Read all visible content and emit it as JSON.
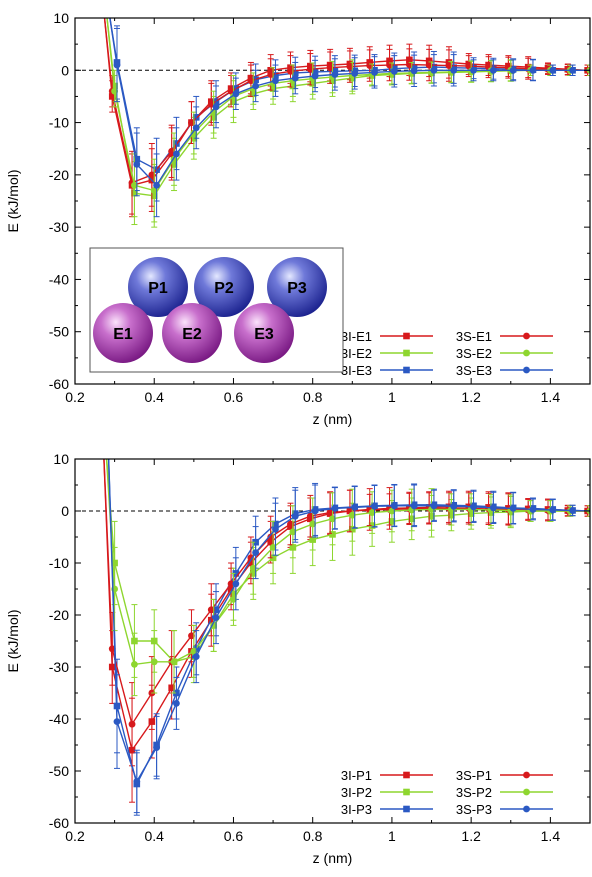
{
  "charts": [
    {
      "type": "line",
      "xlabel": "z (nm)",
      "ylabel": "E (kJ/mol)",
      "xlim": [
        0.2,
        1.5
      ],
      "ylim": [
        -60,
        10
      ],
      "xticks": [
        0.2,
        0.4,
        0.6,
        0.8,
        1,
        1.2,
        1.4
      ],
      "xtick_labels": [
        "0.2",
        "0.4",
        "0.6",
        "0.8",
        "1",
        "1.2",
        "1.4"
      ],
      "yticks": [
        10,
        0,
        -10,
        -20,
        -30,
        -40,
        -50,
        -60
      ],
      "ytick_labels": [
        "10",
        "0",
        "-10",
        "-20",
        "-30",
        "-40",
        "-50",
        "-60"
      ],
      "zero_line": "dashed",
      "legend_position": "bottom-right",
      "has_inset": true,
      "inset_spheres": [
        {
          "label": "P1",
          "kind": "P"
        },
        {
          "label": "P2",
          "kind": "P"
        },
        {
          "label": "P3",
          "kind": "P"
        },
        {
          "label": "E1",
          "kind": "E"
        },
        {
          "label": "E2",
          "kind": "E"
        },
        {
          "label": "E3",
          "kind": "E"
        }
      ],
      "series": [
        {
          "name": "3I-E1",
          "color": "#d7191c",
          "marker": "square",
          "x": [
            0.3,
            0.35,
            0.4,
            0.45,
            0.5,
            0.55,
            0.6,
            0.65,
            0.7,
            0.75,
            0.8,
            0.85,
            0.9,
            0.95,
            1.0,
            1.05,
            1.1,
            1.15,
            1.2,
            1.25,
            1.3,
            1.35,
            1.4,
            1.45,
            1.5
          ],
          "y": [
            -5,
            -22,
            -21,
            -16,
            -10,
            -6,
            -3.5,
            -1.5,
            0,
            0.5,
            0.8,
            1,
            1.2,
            1.5,
            1.8,
            2,
            1.8,
            1.5,
            1.2,
            1,
            0.8,
            0.6,
            0.4,
            0.2,
            0
          ],
          "err": [
            3,
            6,
            6,
            5,
            4,
            4,
            3,
            3,
            3,
            3,
            3,
            3,
            3,
            3,
            3,
            3,
            3,
            3,
            2,
            2,
            2,
            2,
            1,
            1,
            1
          ]
        },
        {
          "name": "3I-E2",
          "color": "#8ed62f",
          "marker": "square",
          "x": [
            0.3,
            0.35,
            0.4,
            0.45,
            0.5,
            0.55,
            0.6,
            0.65,
            0.7,
            0.75,
            0.8,
            0.85,
            0.9,
            0.95,
            1.0,
            1.05,
            1.1,
            1.15,
            1.2,
            1.25,
            1.3,
            1.35,
            1.4,
            1.45,
            1.5
          ],
          "y": [
            -3,
            -23.5,
            -24,
            -18,
            -13,
            -9,
            -6,
            -4.5,
            -3.5,
            -3,
            -2.5,
            -2,
            -1.5,
            -1,
            -0.8,
            -0.6,
            -0.5,
            -0.4,
            -0.3,
            -0.2,
            -0.1,
            0,
            0,
            0,
            0
          ],
          "err": [
            3,
            6,
            6,
            5,
            4,
            4,
            4,
            3,
            3,
            3,
            3,
            3,
            3,
            2,
            2,
            2,
            2,
            2,
            2,
            2,
            2,
            1,
            1,
            1,
            1
          ]
        },
        {
          "name": "3I-E3",
          "color": "#2b59c3",
          "marker": "square",
          "x": [
            0.3,
            0.35,
            0.4,
            0.45,
            0.5,
            0.55,
            0.6,
            0.65,
            0.7,
            0.75,
            0.8,
            0.85,
            0.9,
            0.95,
            1.0,
            1.05,
            1.1,
            1.15,
            1.2,
            1.25,
            1.3,
            1.35,
            1.4,
            1.45,
            1.5
          ],
          "y": [
            1.5,
            -17,
            -19,
            -14,
            -9,
            -6,
            -3.5,
            -1.8,
            -1,
            -0.5,
            -0.3,
            -0.2,
            -0.1,
            0,
            0.3,
            0.5,
            0.6,
            0.5,
            0.4,
            0.3,
            0.2,
            0.1,
            0,
            0,
            0
          ],
          "err": [
            7,
            6,
            6,
            5,
            4,
            4,
            3,
            3,
            3,
            3,
            3,
            3,
            3,
            3,
            3,
            3,
            3,
            3,
            2,
            2,
            2,
            2,
            1,
            1,
            1
          ]
        },
        {
          "name": "3S-E1",
          "color": "#d7191c",
          "marker": "circle",
          "x": [
            0.3,
            0.35,
            0.4,
            0.45,
            0.5,
            0.55,
            0.6,
            0.65,
            0.7,
            0.75,
            0.8,
            0.85,
            0.9,
            0.95,
            1.0,
            1.05,
            1.1,
            1.15,
            1.2,
            1.25,
            1.3,
            1.35,
            1.4,
            1.45,
            1.5
          ],
          "y": [
            -4,
            -21.5,
            -20,
            -15.5,
            -10,
            -6.5,
            -4,
            -2,
            -0.8,
            -0.2,
            0.2,
            0.5,
            0.7,
            0.9,
            1,
            1.1,
            1,
            0.9,
            0.8,
            0.6,
            0.5,
            0.3,
            0.2,
            0.1,
            0
          ],
          "err": [
            3,
            6,
            6,
            5,
            4,
            4,
            3,
            3,
            3,
            3,
            3,
            3,
            3,
            3,
            3,
            3,
            3,
            3,
            2,
            2,
            2,
            2,
            1,
            1,
            1
          ]
        },
        {
          "name": "3S-E2",
          "color": "#8ed62f",
          "marker": "circle",
          "x": [
            0.3,
            0.35,
            0.4,
            0.45,
            0.5,
            0.55,
            0.6,
            0.65,
            0.7,
            0.75,
            0.8,
            0.85,
            0.9,
            0.95,
            1.0,
            1.05,
            1.1,
            1.15,
            1.2,
            1.25,
            1.3,
            1.35,
            1.4,
            1.45,
            1.5
          ],
          "y": [
            -4,
            -22,
            -23,
            -17,
            -12,
            -8,
            -5,
            -3.5,
            -2.5,
            -2,
            -1.6,
            -1.3,
            -1,
            -0.8,
            -0.6,
            -0.5,
            -0.4,
            -0.3,
            -0.2,
            -0.1,
            0,
            0,
            0,
            0,
            0
          ],
          "err": [
            3,
            6,
            6,
            5,
            4,
            4,
            4,
            3,
            3,
            3,
            3,
            3,
            3,
            2,
            2,
            2,
            2,
            2,
            2,
            2,
            2,
            1,
            1,
            1,
            1
          ]
        },
        {
          "name": "3S-E3",
          "color": "#2b59c3",
          "marker": "circle",
          "x": [
            0.3,
            0.35,
            0.4,
            0.45,
            0.5,
            0.55,
            0.6,
            0.65,
            0.7,
            0.75,
            0.8,
            0.85,
            0.9,
            0.95,
            1.0,
            1.05,
            1.1,
            1.15,
            1.2,
            1.25,
            1.3,
            1.35,
            1.4,
            1.45,
            1.5
          ],
          "y": [
            1,
            -18,
            -22,
            -16,
            -11,
            -7,
            -4.5,
            -3,
            -2,
            -1.5,
            -1.1,
            -0.8,
            -0.6,
            -0.4,
            -0.2,
            -0.1,
            0,
            0,
            0,
            0,
            0,
            0,
            0,
            0,
            0
          ],
          "err": [
            7,
            6,
            6,
            5,
            4,
            4,
            3,
            3,
            3,
            3,
            3,
            3,
            3,
            3,
            3,
            3,
            3,
            3,
            2,
            2,
            2,
            2,
            1,
            1,
            1
          ]
        }
      ]
    },
    {
      "type": "line",
      "xlabel": "z (nm)",
      "ylabel": "E (kJ/mol)",
      "xlim": [
        0.2,
        1.5
      ],
      "ylim": [
        -60,
        10
      ],
      "xticks": [
        0.2,
        0.4,
        0.6,
        0.8,
        1,
        1.2,
        1.4
      ],
      "xtick_labels": [
        "0.2",
        "0.4",
        "0.6",
        "0.8",
        "1",
        "1.2",
        "1.4"
      ],
      "yticks": [
        10,
        0,
        -10,
        -20,
        -30,
        -40,
        -50,
        -60
      ],
      "ytick_labels": [
        "10",
        "0",
        "-10",
        "-20",
        "-30",
        "-40",
        "-50",
        "-60"
      ],
      "zero_line": "dashed",
      "legend_position": "bottom-right",
      "has_inset": false,
      "series": [
        {
          "name": "3I-P1",
          "color": "#d7191c",
          "marker": "square",
          "x": [
            0.3,
            0.35,
            0.4,
            0.45,
            0.5,
            0.55,
            0.6,
            0.65,
            0.7,
            0.75,
            0.8,
            0.85,
            0.9,
            0.95,
            1.0,
            1.05,
            1.1,
            1.15,
            1.2,
            1.25,
            1.3,
            1.35,
            1.4,
            1.45,
            1.5
          ],
          "y": [
            -30,
            -46,
            -40.5,
            -34,
            -27,
            -21,
            -15,
            -10,
            -6,
            -3,
            -1.5,
            -0.5,
            0,
            0.3,
            0.5,
            0.6,
            0.7,
            0.8,
            0.8,
            0.7,
            0.5,
            0.4,
            0.3,
            0.1,
            0
          ],
          "err": [
            7,
            10,
            7,
            6,
            5,
            5,
            4,
            4,
            4,
            4,
            4,
            4,
            4,
            4,
            4,
            3,
            3,
            3,
            3,
            3,
            3,
            2,
            2,
            1,
            1
          ]
        },
        {
          "name": "3I-P2",
          "color": "#8ed62f",
          "marker": "square",
          "x": [
            0.3,
            0.35,
            0.4,
            0.45,
            0.5,
            0.55,
            0.6,
            0.65,
            0.7,
            0.75,
            0.8,
            0.85,
            0.9,
            0.95,
            1.0,
            1.05,
            1.1,
            1.15,
            1.2,
            1.25,
            1.3,
            1.35,
            1.4,
            1.45,
            1.5
          ],
          "y": [
            -10,
            -25,
            -25,
            -29,
            -28,
            -22,
            -16,
            -12,
            -9,
            -7,
            -5.5,
            -4.5,
            -3.5,
            -2.8,
            -2,
            -1.5,
            -1,
            -0.8,
            -0.5,
            -0.3,
            -0.2,
            0,
            0,
            0,
            0
          ],
          "err": [
            8,
            7,
            6,
            6,
            5,
            5,
            5,
            5,
            5,
            5,
            5,
            5,
            5,
            4,
            4,
            4,
            4,
            3,
            3,
            3,
            3,
            2,
            2,
            1,
            1
          ]
        },
        {
          "name": "3I-P3",
          "color": "#2b59c3",
          "marker": "square",
          "x": [
            0.3,
            0.35,
            0.4,
            0.45,
            0.5,
            0.55,
            0.6,
            0.65,
            0.7,
            0.75,
            0.8,
            0.85,
            0.9,
            0.95,
            1.0,
            1.05,
            1.1,
            1.15,
            1.2,
            1.25,
            1.3,
            1.35,
            1.4,
            1.45,
            1.5
          ],
          "y": [
            -37.5,
            -52.5,
            -45,
            -35,
            -26.5,
            -19,
            -12,
            -6,
            -2.5,
            -0.5,
            0.3,
            0.6,
            0.8,
            1,
            1.1,
            1.2,
            1.2,
            1.1,
            1,
            0.8,
            0.6,
            0.5,
            0.3,
            0.1,
            0
          ],
          "err": [
            9,
            6,
            6,
            5,
            5,
            5,
            5,
            5,
            5,
            5,
            5,
            4,
            4,
            4,
            4,
            4,
            3,
            3,
            3,
            3,
            3,
            2,
            2,
            1,
            1
          ]
        },
        {
          "name": "3S-P1",
          "color": "#d7191c",
          "marker": "circle",
          "x": [
            0.3,
            0.35,
            0.4,
            0.45,
            0.5,
            0.55,
            0.6,
            0.65,
            0.7,
            0.75,
            0.8,
            0.85,
            0.9,
            0.95,
            1.0,
            1.05,
            1.1,
            1.15,
            1.2,
            1.25,
            1.3,
            1.35,
            1.4,
            1.45,
            1.5
          ],
          "y": [
            -26.5,
            -41,
            -35,
            -29,
            -24,
            -19,
            -14,
            -9,
            -5,
            -2.5,
            -1,
            -0.3,
            0,
            0.2,
            0.3,
            0.4,
            0.5,
            0.5,
            0.5,
            0.4,
            0.3,
            0.2,
            0.1,
            0,
            0
          ],
          "err": [
            7,
            8,
            7,
            6,
            5,
            5,
            4,
            4,
            4,
            4,
            4,
            4,
            4,
            3,
            3,
            3,
            3,
            3,
            3,
            3,
            3,
            2,
            2,
            1,
            1
          ]
        },
        {
          "name": "3S-P2",
          "color": "#8ed62f",
          "marker": "circle",
          "x": [
            0.3,
            0.35,
            0.4,
            0.45,
            0.5,
            0.55,
            0.6,
            0.65,
            0.7,
            0.75,
            0.8,
            0.85,
            0.9,
            0.95,
            1.0,
            1.05,
            1.1,
            1.15,
            1.2,
            1.25,
            1.3,
            1.35,
            1.4,
            1.45,
            1.5
          ],
          "y": [
            -15,
            -29.5,
            -29,
            -29,
            -27,
            -22,
            -17,
            -11,
            -7,
            -4,
            -2.5,
            -1.5,
            -0.8,
            -0.3,
            0,
            0.2,
            0.3,
            0.3,
            0.3,
            0.2,
            0.1,
            0,
            0,
            0,
            0
          ],
          "err": [
            8,
            6,
            6,
            6,
            5,
            5,
            5,
            5,
            5,
            5,
            5,
            5,
            5,
            4,
            4,
            4,
            4,
            3,
            3,
            3,
            3,
            2,
            2,
            1,
            1
          ]
        },
        {
          "name": "3S-P3",
          "color": "#2b59c3",
          "marker": "circle",
          "x": [
            0.3,
            0.35,
            0.4,
            0.45,
            0.5,
            0.55,
            0.6,
            0.65,
            0.7,
            0.75,
            0.8,
            0.85,
            0.9,
            0.95,
            1.0,
            1.05,
            1.1,
            1.15,
            1.2,
            1.25,
            1.3,
            1.35,
            1.4,
            1.45,
            1.5
          ],
          "y": [
            -40.5,
            -52,
            -45.5,
            -37,
            -28,
            -20.5,
            -14,
            -8,
            -3.5,
            -1,
            0,
            0.5,
            0.7,
            0.9,
            1,
            1,
            1,
            0.9,
            0.8,
            0.6,
            0.5,
            0.3,
            0.2,
            0.1,
            0
          ],
          "err": [
            9,
            6,
            6,
            5,
            5,
            5,
            5,
            5,
            5,
            5,
            5,
            4,
            4,
            4,
            4,
            4,
            3,
            3,
            3,
            3,
            3,
            2,
            2,
            1,
            1
          ]
        }
      ]
    }
  ]
}
